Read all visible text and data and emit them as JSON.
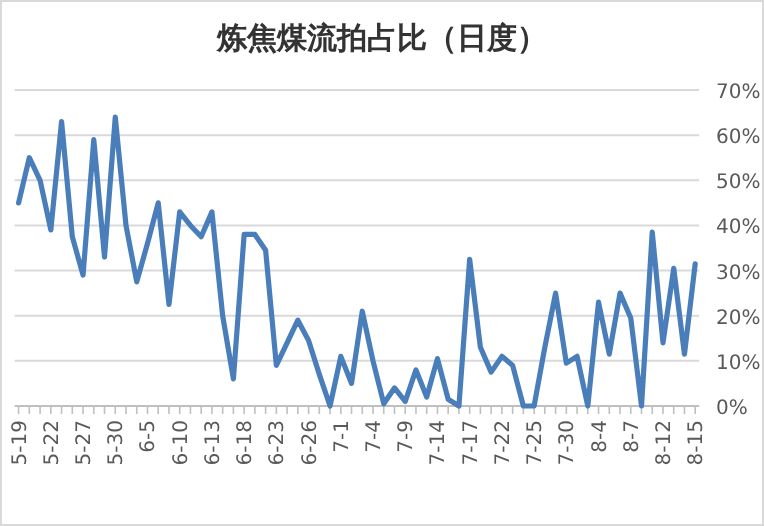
{
  "chart_data": {
    "type": "line",
    "title": "炼焦煤流拍占比（日度）",
    "categories": [
      "5-19",
      null,
      null,
      "5-22",
      null,
      null,
      "5-27",
      null,
      null,
      "5-30",
      null,
      null,
      "6-5",
      null,
      null,
      "6-10",
      null,
      null,
      "6-13",
      null,
      null,
      "6-18",
      null,
      null,
      "6-23",
      null,
      null,
      "6-26",
      null,
      null,
      "7-1",
      null,
      null,
      "7-4",
      null,
      null,
      "7-9",
      null,
      null,
      "7-14",
      null,
      null,
      "7-17",
      null,
      null,
      "7-22",
      null,
      null,
      "7-25",
      null,
      null,
      "7-30",
      null,
      null,
      "8-4",
      null,
      null,
      "8-7",
      null,
      null,
      "8-12",
      null,
      null,
      "8-15"
    ],
    "series": [
      {
        "color": "#4a7ebb",
        "values": [
          45,
          55,
          50,
          39,
          63,
          37.5,
          29,
          59,
          33,
          64,
          40,
          27.5,
          36,
          45,
          22.5,
          43,
          40,
          37.5,
          43,
          20,
          6,
          38,
          38,
          34.5,
          9,
          14,
          19,
          14.5,
          7,
          0,
          11,
          5,
          21,
          10,
          0.5,
          4,
          1,
          8,
          2,
          10.5,
          1.5,
          0,
          32.5,
          13,
          7.5,
          11,
          9,
          0,
          0,
          13,
          25,
          9.5,
          11,
          0,
          23,
          11.5,
          25,
          19.5,
          0,
          38.5,
          14,
          30.5,
          11.5,
          31.5
        ]
      }
    ],
    "ylim": [
      0,
      70
    ],
    "yticks": [
      {
        "value": 0,
        "label": "0%"
      },
      {
        "value": 10,
        "label": "10%"
      },
      {
        "value": 20,
        "label": "20%"
      },
      {
        "value": 30,
        "label": "30%"
      },
      {
        "value": 40,
        "label": "40%"
      },
      {
        "value": 50,
        "label": "50%"
      },
      {
        "value": 60,
        "label": "60%"
      },
      {
        "value": 70,
        "label": "70%"
      }
    ],
    "grid": "y"
  }
}
